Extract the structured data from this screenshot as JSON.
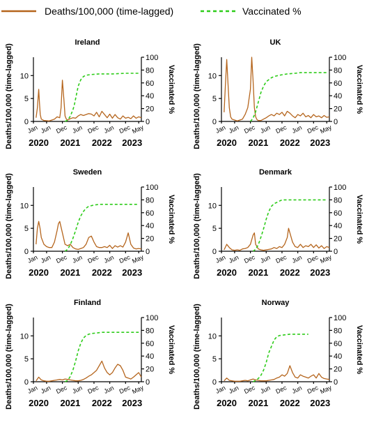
{
  "legend": {
    "deaths_label": "Deaths/100,000 (time-lagged)",
    "vacc_label": "Vaccinated %",
    "deaths_color": "#b5651d",
    "vacc_color": "#2ecc1a"
  },
  "axes": {
    "ylabel_left": "Deaths/100,000 (time-lagged)",
    "ylabel_right": "Vaccinated %",
    "x_month_labels": [
      {
        "label": "Jan",
        "t": 0
      },
      {
        "label": "Jun",
        "t": 5
      },
      {
        "label": "Dec",
        "t": 11
      },
      {
        "label": "Jun",
        "t": 17
      },
      {
        "label": "Dec",
        "t": 23
      },
      {
        "label": "Jun",
        "t": 29
      },
      {
        "label": "Dec",
        "t": 35
      },
      {
        "label": "May",
        "t": 40
      }
    ],
    "x_year_labels": [
      {
        "label": "2020",
        "t": 2
      },
      {
        "label": "2021",
        "t": 14
      },
      {
        "label": "2022",
        "t": 26
      },
      {
        "label": "2023",
        "t": 37.5
      }
    ],
    "x_range_months": [
      0,
      41
    ]
  },
  "chart_data": [
    {
      "type": "line",
      "title": "Ireland",
      "ylim_left": [
        0,
        14
      ],
      "yticks_left": [
        0,
        5,
        10
      ],
      "ylim_right": [
        0,
        100
      ],
      "yticks_right": [
        0,
        20,
        40,
        60,
        80,
        100
      ],
      "series": [
        {
          "name": "Deaths/100,000 (time-lagged)",
          "axis": "left",
          "x": [
            1,
            1.5,
            2,
            2.3,
            2.6,
            3,
            4,
            6,
            8,
            9,
            10,
            10.5,
            11,
            11.6,
            12,
            12.5,
            13,
            14,
            15,
            16,
            17,
            18,
            19,
            20,
            21,
            22,
            23,
            24,
            25,
            26,
            27,
            28,
            29,
            30,
            31,
            32,
            33,
            34,
            35,
            36,
            37,
            38,
            39,
            40,
            41
          ],
          "y": [
            0.8,
            3,
            7,
            4,
            1.5,
            0.5,
            0.2,
            0.1,
            0.5,
            1,
            0.8,
            3,
            9,
            4.5,
            1.2,
            0.5,
            0.3,
            0.6,
            0.8,
            0.7,
            1.2,
            1.5,
            1.3,
            1.5,
            1.7,
            1.6,
            1.2,
            2,
            1,
            2.2,
            1.5,
            0.8,
            1.6,
            0.7,
            1.5,
            0.8,
            0.5,
            1.2,
            0.7,
            0.9,
            0.6,
            1.2,
            0.7,
            1,
            0.8
          ]
        },
        {
          "name": "Vaccinated %",
          "axis": "right",
          "x": [
            12,
            13,
            14,
            15,
            15.5,
            16,
            17,
            18,
            19,
            20,
            22,
            25,
            30,
            35,
            40
          ],
          "y": [
            0,
            2,
            8,
            18,
            25,
            35,
            55,
            65,
            70,
            72,
            73,
            74,
            74,
            75,
            75
          ]
        }
      ]
    },
    {
      "type": "line",
      "title": "UK",
      "ylim_left": [
        0,
        14
      ],
      "yticks_left": [
        0,
        5,
        10
      ],
      "ylim_right": [
        0,
        100
      ],
      "yticks_right": [
        0,
        20,
        40,
        60,
        80,
        100
      ],
      "series": [
        {
          "name": "Deaths/100,000 (time-lagged)",
          "axis": "left",
          "x": [
            1,
            1.5,
            2,
            2.5,
            3,
            3.5,
            4,
            6,
            8,
            9,
            10,
            10.5,
            11,
            11.5,
            12,
            12.5,
            13,
            13.5,
            14,
            15,
            16,
            17,
            18,
            19,
            20,
            21,
            22,
            23,
            24,
            25,
            26,
            27,
            28,
            29,
            30,
            31,
            32,
            33,
            34,
            35,
            36,
            37,
            38,
            39,
            40,
            41
          ],
          "y": [
            2,
            8,
            13.5,
            8,
            3,
            1,
            0.5,
            0.1,
            0.5,
            1.5,
            3,
            5,
            7,
            14,
            9,
            3,
            1,
            0.4,
            0.2,
            0.2,
            0.5,
            0.8,
            1.2,
            1.5,
            1.2,
            1.8,
            1.5,
            2,
            1.2,
            2.2,
            1.8,
            1.2,
            0.8,
            1.5,
            1.2,
            1.8,
            1,
            1.3,
            0.8,
            1.5,
            1,
            1.2,
            0.8,
            1.3,
            0.9,
            1
          ]
        },
        {
          "name": "Vaccinated %",
          "axis": "right",
          "x": [
            11,
            12,
            13,
            14,
            15,
            16,
            17,
            18,
            19,
            20,
            22,
            25,
            28,
            30,
            35,
            40
          ],
          "y": [
            0,
            5,
            15,
            30,
            45,
            55,
            62,
            65,
            68,
            70,
            72,
            74,
            75,
            76,
            76,
            76
          ]
        }
      ]
    },
    {
      "type": "line",
      "title": "Sweden",
      "ylim_left": [
        0,
        14
      ],
      "yticks_left": [
        0,
        5,
        10
      ],
      "ylim_right": [
        0,
        100
      ],
      "yticks_right": [
        0,
        20,
        40,
        60,
        80,
        100
      ],
      "series": [
        {
          "name": "Deaths/100,000 (time-lagged)",
          "axis": "left",
          "x": [
            1,
            1.5,
            2,
            2.5,
            3,
            4,
            5,
            6,
            7,
            8,
            9,
            9.5,
            10,
            11,
            12,
            13,
            14,
            15,
            16,
            17,
            18,
            19,
            20,
            21,
            22,
            23,
            24,
            25,
            26,
            27,
            28,
            29,
            30,
            31,
            32,
            33,
            34,
            35,
            36,
            37,
            38,
            39,
            40,
            41
          ],
          "y": [
            1.5,
            5,
            6.5,
            5,
            3,
            1.5,
            1,
            0.8,
            0.8,
            2,
            4.5,
            6,
            6.5,
            4,
            1.5,
            1.2,
            1.5,
            0.8,
            0.5,
            0.4,
            0.6,
            0.8,
            1.5,
            3,
            3.3,
            2,
            1,
            0.8,
            0.8,
            1,
            0.8,
            1.3,
            0.6,
            1.2,
            0.9,
            1.2,
            0.9,
            2,
            4,
            1.5,
            0.7,
            0.5,
            0.6,
            0.5
          ]
        },
        {
          "name": "Vaccinated %",
          "axis": "right",
          "x": [
            12,
            13,
            14,
            15,
            16,
            17,
            18,
            19,
            20,
            21,
            23,
            25,
            30,
            35,
            40
          ],
          "y": [
            0,
            3,
            10,
            20,
            32,
            45,
            55,
            62,
            67,
            70,
            72,
            73,
            73,
            73,
            73
          ]
        }
      ]
    },
    {
      "type": "line",
      "title": "Denmark",
      "ylim_left": [
        0,
        14
      ],
      "yticks_left": [
        0,
        5,
        10
      ],
      "ylim_right": [
        0,
        100
      ],
      "yticks_right": [
        0,
        20,
        40,
        60,
        80,
        100
      ],
      "series": [
        {
          "name": "Deaths/100,000 (time-lagged)",
          "axis": "left",
          "x": [
            1,
            2,
            3,
            4,
            5,
            6,
            7,
            8,
            9,
            10,
            11,
            12,
            12.5,
            13,
            14,
            15,
            16,
            17,
            18,
            19,
            20,
            21,
            22,
            23,
            24,
            25,
            25.5,
            26,
            27,
            28,
            29,
            30,
            31,
            32,
            33,
            34,
            35,
            36,
            37,
            38,
            39,
            40,
            41
          ],
          "y": [
            0.3,
            1.5,
            0.8,
            0.3,
            0.2,
            0.3,
            0.2,
            0.5,
            0.6,
            0.8,
            1.5,
            3.5,
            4,
            1.5,
            0.5,
            0.3,
            0.2,
            0.3,
            0.4,
            0.5,
            0.8,
            0.6,
            1,
            0.8,
            1.5,
            3,
            5,
            4,
            2,
            1,
            0.8,
            1.5,
            0.8,
            1.2,
            1,
            1.5,
            0.8,
            1.4,
            0.7,
            1.2,
            0.6,
            1,
            0.8
          ]
        },
        {
          "name": "Vaccinated %",
          "axis": "right",
          "x": [
            12,
            13,
            14,
            15,
            16,
            17,
            18,
            19,
            20,
            21,
            22,
            23,
            25,
            30,
            35,
            40
          ],
          "y": [
            0,
            3,
            10,
            22,
            35,
            50,
            62,
            70,
            74,
            76,
            78,
            80,
            80,
            80,
            80,
            80
          ]
        }
      ]
    },
    {
      "type": "line",
      "title": "Finland",
      "ylim_left": [
        0,
        14
      ],
      "yticks_left": [
        0,
        5,
        10
      ],
      "ylim_right": [
        0,
        100
      ],
      "yticks_right": [
        0,
        20,
        40,
        60,
        80,
        100
      ],
      "series": [
        {
          "name": "Deaths/100,000 (time-lagged)",
          "axis": "left",
          "x": [
            1,
            2,
            3,
            4,
            5,
            6,
            7,
            8,
            9,
            10,
            11,
            12,
            13,
            14,
            15,
            16,
            17,
            18,
            19,
            20,
            21,
            22,
            23,
            24,
            25,
            26,
            27,
            28,
            29,
            30,
            31,
            32,
            33,
            34,
            35,
            36,
            37,
            38,
            39,
            40,
            41
          ],
          "y": [
            0.2,
            1,
            0.4,
            0.2,
            0.1,
            0.1,
            0.2,
            0.3,
            0.4,
            0.5,
            0.4,
            0.6,
            0.5,
            0.4,
            0.3,
            0.2,
            0.2,
            0.3,
            0.5,
            0.8,
            1.2,
            1.5,
            2,
            2.5,
            3.5,
            4.5,
            3,
            2,
            1.5,
            2,
            3,
            3.8,
            3.5,
            2.5,
            1,
            0.8,
            0.6,
            1,
            1.5,
            2,
            1
          ]
        },
        {
          "name": "Vaccinated %",
          "axis": "right",
          "x": [
            12,
            13,
            14,
            15,
            16,
            17,
            18,
            19,
            20,
            21,
            22,
            24,
            26,
            30,
            35,
            40
          ],
          "y": [
            0,
            2,
            8,
            18,
            32,
            48,
            60,
            68,
            72,
            74,
            75,
            76,
            77,
            77,
            77,
            77
          ]
        }
      ]
    },
    {
      "type": "line",
      "title": "Norway",
      "ylim_left": [
        0,
        14
      ],
      "yticks_left": [
        0,
        5,
        10
      ],
      "ylim_right": [
        0,
        100
      ],
      "yticks_right": [
        0,
        20,
        40,
        60,
        80,
        100
      ],
      "series": [
        {
          "name": "Deaths/100,000 (time-lagged)",
          "axis": "left",
          "x": [
            1,
            2,
            3,
            4,
            5,
            6,
            7,
            8,
            9,
            10,
            11,
            12,
            13,
            14,
            15,
            16,
            17,
            18,
            19,
            20,
            21,
            22,
            23,
            24,
            25,
            26,
            27,
            28,
            29,
            30,
            31,
            32,
            33,
            34,
            35,
            36,
            37,
            38,
            39,
            40,
            41
          ],
          "y": [
            0.2,
            0.8,
            0.3,
            0.2,
            0.1,
            0.1,
            0.1,
            0.2,
            0.3,
            0.2,
            0.4,
            0.6,
            0.4,
            0.3,
            0.2,
            0.2,
            0.2,
            0.3,
            0.4,
            0.5,
            0.8,
            1,
            1.5,
            1.2,
            1.8,
            3.5,
            2,
            1,
            0.8,
            1.5,
            1.2,
            1,
            0.8,
            1.2,
            1.5,
            0.8,
            1.8,
            1,
            0.7,
            0.6,
            0.5
          ]
        },
        {
          "name": "Vaccinated %",
          "axis": "right",
          "x": [
            12,
            13,
            14,
            15,
            16,
            17,
            18,
            19,
            20,
            21,
            22,
            24,
            26,
            30,
            33
          ],
          "y": [
            0,
            2,
            5,
            10,
            18,
            30,
            45,
            55,
            65,
            70,
            72,
            73,
            74,
            74,
            74
          ]
        }
      ]
    }
  ]
}
